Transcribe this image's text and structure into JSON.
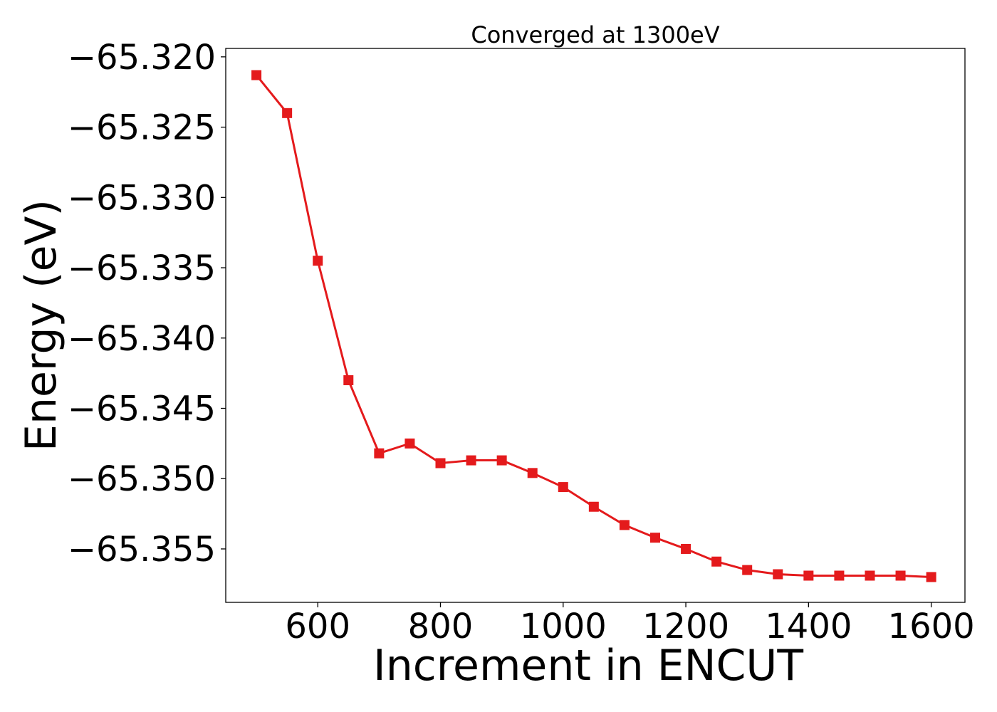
{
  "chart_data": {
    "type": "line",
    "title": "Converged at 1300eV",
    "xlabel": "Increment in ENCUT",
    "ylabel": "Energy (eV)",
    "xlim": [
      450,
      1655
    ],
    "ylim": [
      -65.3588,
      -65.3194
    ],
    "x_ticks": [
      600,
      800,
      1000,
      1200,
      1400,
      1600
    ],
    "y_ticks": [
      -65.32,
      -65.325,
      -65.33,
      -65.335,
      -65.34,
      -65.345,
      -65.35,
      -65.355
    ],
    "x_tick_labels": [
      "600",
      "800",
      "1000",
      "1200",
      "1400",
      "1600"
    ],
    "y_tick_labels": [
      "−65.320",
      "−65.325",
      "−65.330",
      "−65.335",
      "−65.340",
      "−65.345",
      "−65.350",
      "−65.355"
    ],
    "grid": false,
    "legend": "none",
    "series": [
      {
        "color": "#e41a1c",
        "marker": "square",
        "x": [
          500,
          550,
          600,
          650,
          700,
          750,
          800,
          850,
          900,
          950,
          1000,
          1050,
          1100,
          1150,
          1200,
          1250,
          1300,
          1350,
          1400,
          1450,
          1500,
          1550,
          1600
        ],
        "values": [
          -65.3213,
          -65.324,
          -65.3345,
          -65.343,
          -65.3482,
          -65.3475,
          -65.3489,
          -65.3487,
          -65.3487,
          -65.3496,
          -65.3506,
          -65.352,
          -65.3533,
          -65.3542,
          -65.355,
          -65.3559,
          -65.3565,
          -65.3568,
          -65.3569,
          -65.3569,
          -65.3569,
          -65.3569,
          -65.357
        ]
      }
    ]
  }
}
